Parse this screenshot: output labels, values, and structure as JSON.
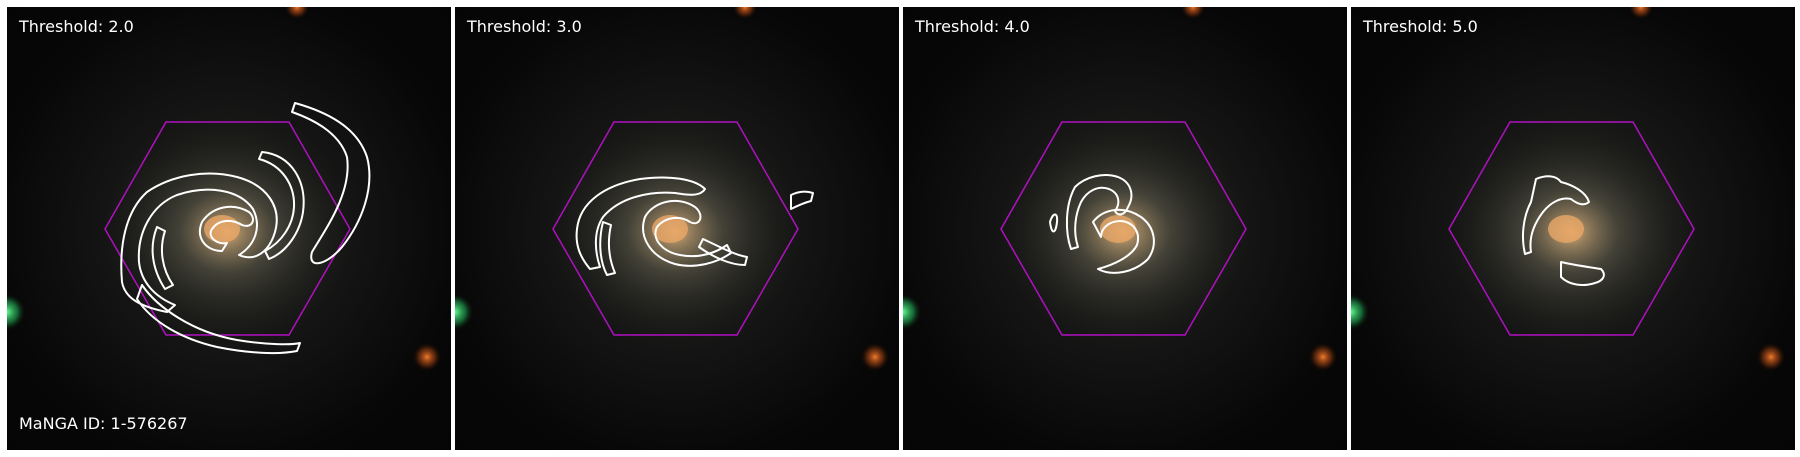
{
  "panels": [
    {
      "threshold_label": "Threshold: 2.0"
    },
    {
      "threshold_label": "Threshold: 3.0"
    },
    {
      "threshold_label": "Threshold: 4.0"
    },
    {
      "threshold_label": "Threshold: 5.0"
    }
  ],
  "manga_id_label": "MaNGA ID: 1-576267",
  "colors": {
    "hexagon": "#b010c0",
    "contour": "#ffffff",
    "galaxy_core": "#e0a060",
    "star_green": "#40ff80",
    "star_orange": "#ff7020"
  }
}
